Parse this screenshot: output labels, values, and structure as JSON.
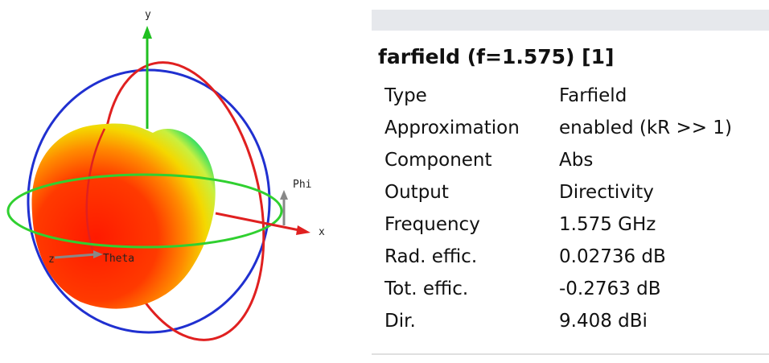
{
  "plot": {
    "axis_labels": {
      "y": "y",
      "x": "x",
      "z": "z",
      "phi": "Phi",
      "theta": "Theta"
    }
  },
  "panel": {
    "title": "farfield (f=1.575) [1]",
    "rows": [
      [
        "Type",
        "Farfield"
      ],
      [
        "Approximation",
        "enabled (kR >> 1)"
      ],
      [
        "Component",
        "Abs"
      ],
      [
        "Output",
        "Directivity"
      ],
      [
        "Frequency",
        "1.575 GHz"
      ],
      [
        "Rad. effic.",
        "0.02736 dB"
      ],
      [
        "Tot. effic.",
        "-0.2763 dB"
      ],
      [
        "Dir.",
        "9.408 dBi"
      ]
    ]
  }
}
